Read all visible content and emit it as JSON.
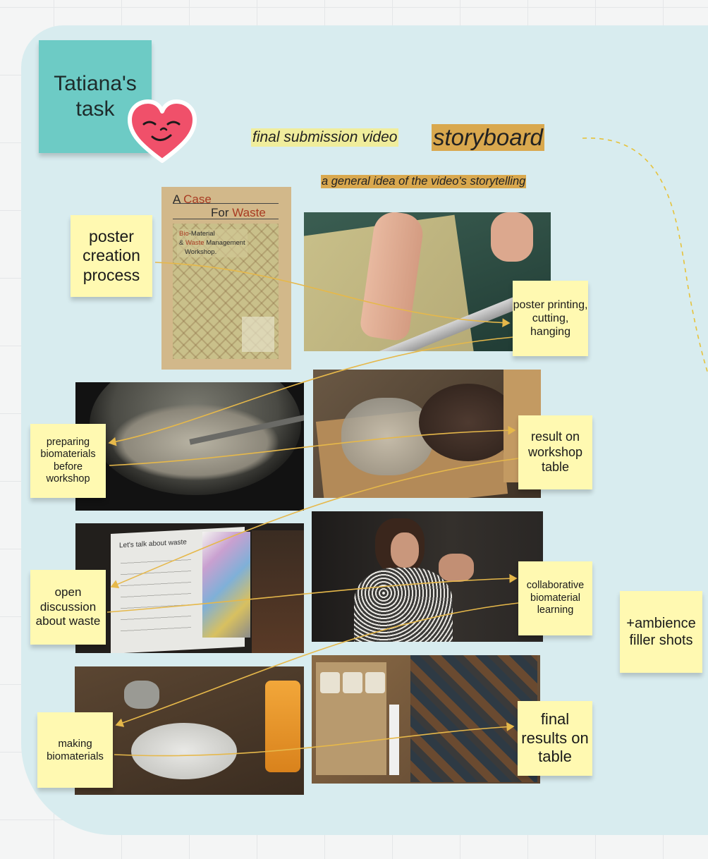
{
  "header": {
    "title_note": "Tatiana's task",
    "subtitle": "final submission video",
    "title": "storyboard",
    "description": "a general idea of the video's storytelling"
  },
  "poster": {
    "line1_a": "A",
    "line1_b": "Case",
    "line2_a": "For",
    "line2_b": "Waste",
    "sub1_a": "Bio",
    "sub1_b": "-Material",
    "sub2_a": "&",
    "sub2_b": "Waste",
    "sub2_c": "Management",
    "sub3": "Workshop."
  },
  "stickies": {
    "poster_creation": "poster creation process",
    "poster_printing": "poster printing, cutting, hanging",
    "preparing": "preparing biomaterials before workshop",
    "result_table": "result on workshop table",
    "open_discussion": "open discussion about waste",
    "collaborative": "collaborative biomaterial learning",
    "ambience": "+ambience filler shots",
    "making": "making biomaterials",
    "final_results": "final results on table"
  },
  "photos": {
    "screen_heading": "Let's talk about waste"
  },
  "colors": {
    "board_bg": "#d8ecef",
    "sticky_yellow": "#fff9b1",
    "sticky_teal": "#6dcbc5",
    "connector": "#e6b84a",
    "title_highlight": "#d9a84e",
    "subtitle_highlight": "#f0ed9c",
    "heart": "#f0506a"
  }
}
